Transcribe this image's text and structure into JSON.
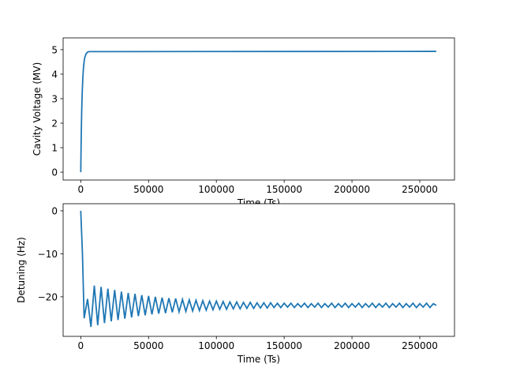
{
  "chart_data": [
    {
      "type": "line",
      "xlabel": "Time (Ts)",
      "ylabel": "Cavity Voltage (MV)",
      "color": "#1f77b4",
      "x": [
        0,
        250,
        500,
        750,
        1000,
        1500,
        2000,
        2500,
        3000,
        4000,
        5000,
        6000,
        262143
      ],
      "values": [
        0,
        1.09,
        1.94,
        2.61,
        3.12,
        3.83,
        4.26,
        4.53,
        4.69,
        4.84,
        4.9,
        4.92,
        4.93
      ],
      "xlim": [
        -13000,
        275600
      ],
      "ylim": [
        -0.32,
        5.48
      ],
      "xticks": [
        0,
        50000,
        100000,
        150000,
        200000,
        250000
      ],
      "yticks": [
        0,
        1,
        2,
        3,
        4,
        5
      ]
    },
    {
      "type": "line",
      "xlabel": "Time (Ts)",
      "ylabel": "Detuning (Hz)",
      "color": "#1f77b4",
      "x": [
        0,
        1250,
        2500,
        5000,
        7500,
        10000,
        12500,
        15000,
        17500,
        20000,
        22500,
        25000,
        27500,
        30000,
        32500,
        35000,
        37500,
        40000,
        42500,
        45000,
        47500,
        50000,
        52500,
        55000,
        57500,
        60000,
        62500,
        65000,
        67500,
        70000,
        72500,
        75000,
        77500,
        80000,
        82500,
        85000,
        87500,
        90000,
        92500,
        95000,
        97500,
        100000,
        102500,
        105000,
        107500,
        110000,
        112500,
        115000,
        117500,
        120000,
        122500,
        125000,
        127500,
        130000,
        132500,
        135000,
        137500,
        140000,
        142500,
        145000,
        147500,
        150000,
        152500,
        155000,
        157500,
        160000,
        162500,
        165000,
        167500,
        170000,
        172500,
        175000,
        177500,
        180000,
        182500,
        185000,
        187500,
        190000,
        192500,
        195000,
        197500,
        200000,
        202500,
        205000,
        207500,
        210000,
        212500,
        215000,
        217500,
        220000,
        222500,
        225000,
        227500,
        230000,
        232500,
        235000,
        237500,
        240000,
        242500,
        245000,
        247500,
        250000,
        252500,
        255000,
        257500,
        260000,
        262143
      ],
      "values": [
        0,
        -10,
        -25,
        -20.5,
        -27,
        -17.4,
        -26.6,
        -17.7,
        -26.1,
        -18.1,
        -25.7,
        -18.4,
        -25.4,
        -18.8,
        -25.1,
        -19.1,
        -24.8,
        -19.3,
        -24.5,
        -19.6,
        -24.3,
        -19.8,
        -24.1,
        -20,
        -23.9,
        -20.2,
        -23.8,
        -20.3,
        -23.6,
        -20.4,
        -23.5,
        -20.6,
        -23.4,
        -20.7,
        -23.3,
        -20.8,
        -23.2,
        -20.9,
        -23.1,
        -21,
        -23,
        -21,
        -22.9,
        -21.1,
        -22.9,
        -21.2,
        -22.8,
        -21.2,
        -22.8,
        -21.3,
        -22.7,
        -21.3,
        -22.7,
        -21.4,
        -22.6,
        -21.4,
        -22.6,
        -21.4,
        -22.5,
        -21.5,
        -22.5,
        -21.5,
        -22.4,
        -21.5,
        -22.5,
        -21.6,
        -22.4,
        -21.5,
        -22.5,
        -21.6,
        -22.4,
        -21.5,
        -22.5,
        -21.6,
        -22.4,
        -21.5,
        -22.5,
        -21.6,
        -22.4,
        -21.5,
        -22.5,
        -21.6,
        -22.4,
        -21.5,
        -22.5,
        -21.6,
        -22.4,
        -21.5,
        -22.5,
        -21.6,
        -22.4,
        -21.5,
        -22.5,
        -21.6,
        -22.4,
        -21.5,
        -22.5,
        -21.6,
        -22.4,
        -21.5,
        -22.5,
        -21.6,
        -22.4,
        -21.5,
        -22.5,
        -21.6,
        -22
      ],
      "xlim": [
        -13000,
        275600
      ],
      "ylim": [
        -29.2,
        1.65
      ],
      "xticks": [
        0,
        50000,
        100000,
        150000,
        200000,
        250000
      ],
      "yticks": [
        {
          "value": -20,
          "label": "−20"
        },
        {
          "value": -10,
          "label": "−10"
        },
        0
      ]
    }
  ]
}
